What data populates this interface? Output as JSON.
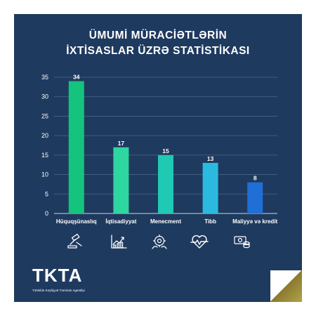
{
  "header": {
    "title_line1": "ÜMUMİ MÜRACİƏTLƏRİN",
    "title_line2": "İXTİSASLAR ÜZRƏ STATİSTİKASI"
  },
  "brand": {
    "logo_text": "TKTA",
    "agency_name": "Təhsildə Keyfiyyət Təminatı Agentliyi"
  },
  "colors": {
    "background": "#1f3a5f",
    "accent_gold": "#a3933e"
  },
  "category_icons": [
    "gavel-icon",
    "growth-chart-icon",
    "management-gear-icon",
    "heartbeat-icon",
    "money-coins-icon"
  ],
  "chart_data": {
    "type": "bar",
    "categories": [
      "Hüquqşünaslıq",
      "İqtisadiyyat",
      "Menecment",
      "Tibb",
      "Maliyyə və kredit"
    ],
    "values": [
      34,
      17,
      15,
      13,
      8
    ],
    "bar_colors": [
      "#14c37d",
      "#2ed6a0",
      "#1fc9b3",
      "#2cb9e0",
      "#1f6fd6"
    ],
    "ylim": [
      0,
      35
    ],
    "yticks": [
      0,
      5,
      10,
      15,
      20,
      25,
      30,
      35
    ],
    "grid": true,
    "xlabel": "",
    "ylabel": ""
  }
}
